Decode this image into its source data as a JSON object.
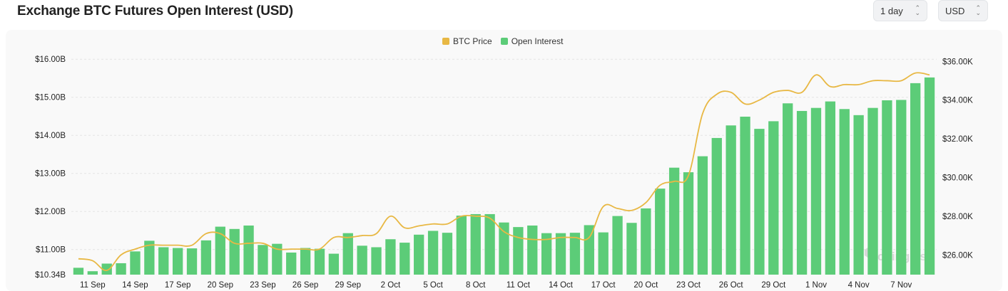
{
  "header": {
    "title": "Exchange BTC Futures Open Interest (USD)",
    "interval_value": "1 day",
    "currency_value": "USD"
  },
  "watermark": "coinglass",
  "colors": {
    "open_interest": "#5ccc78",
    "btc_price": "#e8b844",
    "grid": "#e4e4e4"
  },
  "chart_data": {
    "type": "bar",
    "title": "Exchange BTC Futures Open Interest (USD)",
    "legend": [
      "BTC Price",
      "Open Interest"
    ],
    "legend_position": "top-center",
    "grid": true,
    "x_tick_labels": [
      "11 Sep",
      "14 Sep",
      "17 Sep",
      "20 Sep",
      "23 Sep",
      "26 Sep",
      "29 Sep",
      "2 Oct",
      "5 Oct",
      "8 Oct",
      "11 Oct",
      "14 Oct",
      "17 Oct",
      "20 Oct",
      "23 Oct",
      "26 Oct",
      "29 Oct",
      "1 Nov",
      "4 Nov",
      "7 Nov"
    ],
    "y_left": {
      "ticks": [
        "$10.34B",
        "$11.00B",
        "$12.00B",
        "$13.00B",
        "$14.00B",
        "$15.00B",
        "$16.00B"
      ],
      "tick_values": [
        10.34,
        11,
        12,
        13,
        14,
        15,
        16
      ],
      "range": [
        10.34,
        16.3
      ],
      "unit": "USD billions"
    },
    "y_right": {
      "ticks": [
        "$26.00K",
        "$28.00K",
        "$30.00K",
        "$32.00K",
        "$34.00K",
        "$36.00K"
      ],
      "tick_values": [
        26,
        28,
        30,
        32,
        34,
        36
      ],
      "range": [
        24.9,
        36.9
      ],
      "unit": "USD thousands"
    },
    "categories": [
      "10 Sep",
      "11 Sep",
      "12 Sep",
      "13 Sep",
      "14 Sep",
      "15 Sep",
      "16 Sep",
      "17 Sep",
      "18 Sep",
      "19 Sep",
      "20 Sep",
      "21 Sep",
      "22 Sep",
      "23 Sep",
      "24 Sep",
      "25 Sep",
      "26 Sep",
      "27 Sep",
      "28 Sep",
      "29 Sep",
      "30 Sep",
      "1 Oct",
      "2 Oct",
      "3 Oct",
      "4 Oct",
      "5 Oct",
      "6 Oct",
      "7 Oct",
      "8 Oct",
      "9 Oct",
      "10 Oct",
      "11 Oct",
      "12 Oct",
      "13 Oct",
      "14 Oct",
      "15 Oct",
      "16 Oct",
      "17 Oct",
      "18 Oct",
      "19 Oct",
      "20 Oct",
      "21 Oct",
      "22 Oct",
      "23 Oct",
      "24 Oct",
      "25 Oct",
      "26 Oct",
      "27 Oct",
      "28 Oct",
      "29 Oct",
      "30 Oct",
      "31 Oct",
      "1 Nov",
      "2 Nov",
      "3 Nov",
      "4 Nov",
      "5 Nov",
      "6 Nov",
      "7 Nov",
      "8 Nov",
      "9 Nov"
    ],
    "series": [
      {
        "name": "Open Interest",
        "axis": "left",
        "type": "bar",
        "values": [
          10.52,
          10.43,
          10.63,
          10.64,
          10.95,
          11.23,
          11.06,
          11.04,
          11.03,
          11.24,
          11.6,
          11.54,
          11.63,
          11.12,
          11.15,
          10.92,
          11.04,
          11.02,
          10.89,
          11.43,
          11.1,
          11.06,
          11.27,
          11.18,
          11.39,
          11.49,
          11.44,
          11.89,
          11.93,
          11.93,
          11.71,
          11.59,
          11.63,
          11.43,
          11.43,
          11.44,
          11.64,
          11.45,
          11.88,
          11.7,
          12.08,
          12.6,
          13.15,
          13.03,
          13.45,
          13.93,
          14.26,
          14.49,
          14.17,
          14.37,
          14.84,
          14.64,
          14.72,
          14.89,
          14.69,
          14.53,
          14.72,
          14.92,
          14.93,
          15.37,
          15.52
        ]
      },
      {
        "name": "BTC Price",
        "axis": "right",
        "type": "line",
        "values": [
          25.8,
          25.7,
          25.2,
          26.0,
          26.3,
          26.5,
          26.5,
          26.5,
          26.5,
          27.1,
          27.1,
          26.6,
          26.6,
          26.6,
          26.3,
          26.3,
          26.3,
          26.3,
          26.9,
          26.9,
          27.0,
          27.1,
          28.0,
          27.4,
          27.5,
          27.6,
          27.6,
          28.0,
          28.0,
          27.9,
          27.2,
          26.9,
          26.8,
          26.8,
          26.9,
          26.9,
          26.9,
          28.5,
          28.4,
          28.3,
          28.7,
          29.6,
          29.8,
          30.1,
          33.3,
          34.3,
          34.4,
          33.8,
          34.0,
          34.4,
          34.5,
          34.4,
          35.3,
          34.7,
          34.8,
          34.8,
          35.0,
          35.0,
          35.0,
          35.4,
          35.3
        ]
      }
    ]
  }
}
